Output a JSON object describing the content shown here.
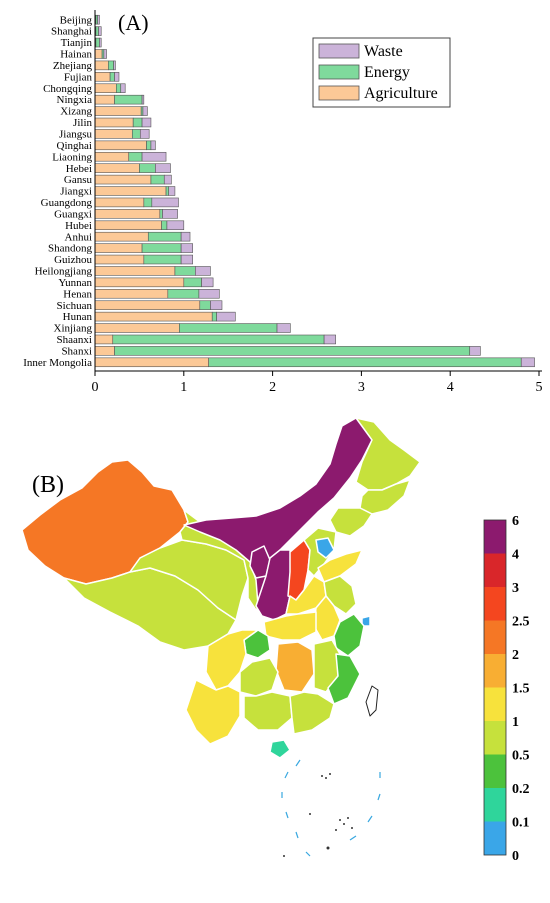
{
  "chart_data": [
    {
      "type": "bar",
      "orientation": "horizontal",
      "stacked": true,
      "panel_label": "(A)",
      "categories": [
        "Beijing",
        "Shanghai",
        "Tianjin",
        "Hainan",
        "Zhejiang",
        "Fujian",
        "Chongqing",
        "Ningxia",
        "Xizang",
        "Jilin",
        "Jiangsu",
        "Qinghai",
        "Liaoning",
        "Hebei",
        "Gansu",
        "Jiangxi",
        "Guangdong",
        "Guangxi",
        "Hubei",
        "Anhui",
        "Shandong",
        "Guizhou",
        "Heilongjiang",
        "Yunnan",
        "Henan",
        "Sichuan",
        "Hunan",
        "Xinjiang",
        "Shaanxi",
        "Shanxi",
        "Inner Mongolia"
      ],
      "series": [
        {
          "name": "Agriculture",
          "color": "#fcc997",
          "values": [
            0.01,
            0.01,
            0.01,
            0.08,
            0.15,
            0.17,
            0.24,
            0.22,
            0.52,
            0.43,
            0.42,
            0.58,
            0.38,
            0.5,
            0.63,
            0.8,
            0.55,
            0.73,
            0.75,
            0.6,
            0.53,
            0.55,
            0.9,
            1.0,
            0.82,
            1.18,
            1.32,
            0.95,
            0.2,
            0.22,
            1.28
          ]
        },
        {
          "name": "Energy",
          "color": "#7fda9c",
          "values": [
            0.02,
            0.03,
            0.04,
            0.02,
            0.06,
            0.05,
            0.05,
            0.31,
            0.02,
            0.1,
            0.09,
            0.05,
            0.15,
            0.18,
            0.15,
            0.03,
            0.09,
            0.03,
            0.06,
            0.37,
            0.44,
            0.42,
            0.23,
            0.2,
            0.35,
            0.12,
            0.05,
            1.1,
            2.38,
            4.0,
            3.52
          ]
        },
        {
          "name": "Waste",
          "color": "#cbb3d9",
          "values": [
            0.02,
            0.03,
            0.02,
            0.03,
            0.02,
            0.05,
            0.05,
            0.02,
            0.05,
            0.1,
            0.1,
            0.05,
            0.27,
            0.17,
            0.08,
            0.07,
            0.3,
            0.17,
            0.19,
            0.1,
            0.13,
            0.13,
            0.17,
            0.13,
            0.23,
            0.13,
            0.21,
            0.15,
            0.13,
            0.12,
            0.15
          ]
        }
      ],
      "xlim": [
        0,
        5
      ],
      "xticks": [
        "0",
        "1",
        "2",
        "3",
        "4",
        "5"
      ],
      "legend": {
        "position": "top-right",
        "order": [
          "Waste",
          "Energy",
          "Agriculture"
        ]
      },
      "grid": false
    },
    {
      "type": "choropleth-map",
      "panel_label": "(B)",
      "colorbar": {
        "labels": [
          "0",
          "0.1",
          "0.2",
          "0.5",
          "1",
          "1.5",
          "2",
          "2.5",
          "3",
          "4",
          "6"
        ],
        "colors": [
          "#3aa6e8",
          "#2fd59b",
          "#4cc23c",
          "#c6e13c",
          "#f7e23c",
          "#f8ae33",
          "#f57725",
          "#f4461f",
          "#d9262a",
          "#8c1a6e"
        ]
      }
    }
  ]
}
